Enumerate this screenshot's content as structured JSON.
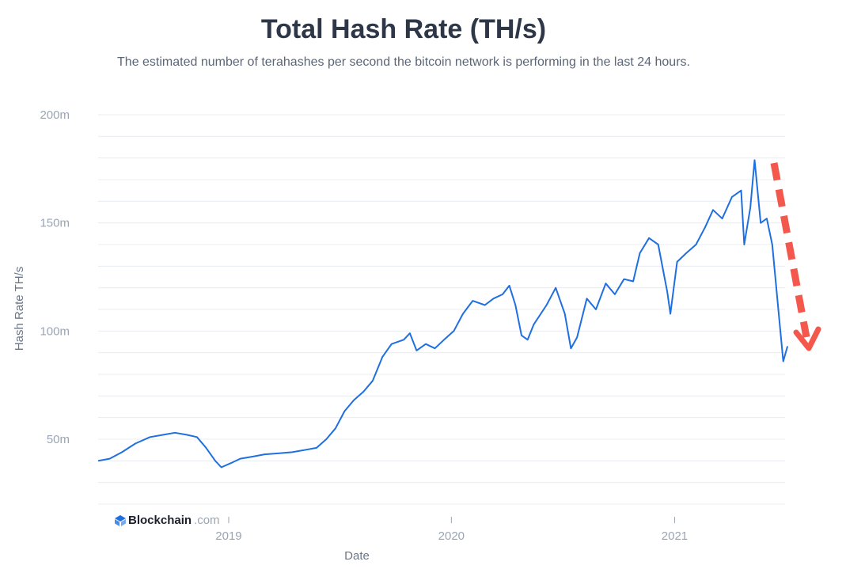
{
  "header": {
    "title": "Total Hash Rate (TH/s)",
    "subtitle": "The estimated number of terahashes per second the bitcoin network is performing in the last 24 hours."
  },
  "brand": {
    "name": "Blockchain",
    "suffix": ".com",
    "icon": "blockchain-logo-icon"
  },
  "colors": {
    "line": "#1f6fe0",
    "annotation_arrow": "#f4584c",
    "grid": "#e8ecf1"
  },
  "chart_data": {
    "type": "line",
    "title": "Total Hash Rate (TH/s)",
    "xlabel": "Date",
    "ylabel": "Hash Rate TH/s",
    "y_ticks": [
      {
        "value": 50000000,
        "label": "50m"
      },
      {
        "value": 100000000,
        "label": "100m"
      },
      {
        "value": 150000000,
        "label": "150m"
      },
      {
        "value": 200000000,
        "label": "200m"
      }
    ],
    "x_ticks": [
      {
        "value": "2019-01-01",
        "label": "2019"
      },
      {
        "value": "2020-01-01",
        "label": "2020"
      },
      {
        "value": "2021-01-01",
        "label": "2021"
      }
    ],
    "xlim": [
      "2018-06-01",
      "2021-07-01"
    ],
    "ylim": [
      20000000,
      200000000
    ],
    "grid": true,
    "legend": "none",
    "annotation": "red dashed downward arrow near the end of the series",
    "series": [
      {
        "points": [
          [
            "2018-06-01",
            40000000
          ],
          [
            "2018-06-20",
            41000000
          ],
          [
            "2018-07-10",
            44000000
          ],
          [
            "2018-08-01",
            48000000
          ],
          [
            "2018-08-25",
            51000000
          ],
          [
            "2018-09-15",
            52000000
          ],
          [
            "2018-10-05",
            53000000
          ],
          [
            "2018-10-25",
            52000000
          ],
          [
            "2018-11-10",
            51000000
          ],
          [
            "2018-11-25",
            46000000
          ],
          [
            "2018-12-10",
            40000000
          ],
          [
            "2018-12-20",
            37000000
          ],
          [
            "2019-01-05",
            39000000
          ],
          [
            "2019-01-20",
            41000000
          ],
          [
            "2019-02-10",
            42000000
          ],
          [
            "2019-03-01",
            43000000
          ],
          [
            "2019-03-25",
            43500000
          ],
          [
            "2019-04-15",
            44000000
          ],
          [
            "2019-05-05",
            45000000
          ],
          [
            "2019-05-25",
            46000000
          ],
          [
            "2019-06-10",
            50000000
          ],
          [
            "2019-06-25",
            55000000
          ],
          [
            "2019-07-10",
            63000000
          ],
          [
            "2019-07-25",
            68000000
          ],
          [
            "2019-08-10",
            72000000
          ],
          [
            "2019-08-25",
            77000000
          ],
          [
            "2019-09-10",
            88000000
          ],
          [
            "2019-09-25",
            94000000
          ],
          [
            "2019-10-15",
            96000000
          ],
          [
            "2019-10-25",
            99000000
          ],
          [
            "2019-11-05",
            91000000
          ],
          [
            "2019-11-20",
            94000000
          ],
          [
            "2019-12-05",
            92000000
          ],
          [
            "2019-12-20",
            96000000
          ],
          [
            "2020-01-05",
            100000000
          ],
          [
            "2020-01-20",
            108000000
          ],
          [
            "2020-02-05",
            114000000
          ],
          [
            "2020-02-25",
            112000000
          ],
          [
            "2020-03-10",
            115000000
          ],
          [
            "2020-03-25",
            117000000
          ],
          [
            "2020-04-05",
            121000000
          ],
          [
            "2020-04-15",
            112000000
          ],
          [
            "2020-04-25",
            98000000
          ],
          [
            "2020-05-05",
            96000000
          ],
          [
            "2020-05-15",
            103000000
          ],
          [
            "2020-06-05",
            112000000
          ],
          [
            "2020-06-20",
            120000000
          ],
          [
            "2020-07-05",
            108000000
          ],
          [
            "2020-07-15",
            92000000
          ],
          [
            "2020-07-25",
            97000000
          ],
          [
            "2020-08-10",
            115000000
          ],
          [
            "2020-08-25",
            110000000
          ],
          [
            "2020-09-10",
            122000000
          ],
          [
            "2020-09-25",
            117000000
          ],
          [
            "2020-10-10",
            124000000
          ],
          [
            "2020-10-25",
            123000000
          ],
          [
            "2020-11-05",
            136000000
          ],
          [
            "2020-11-20",
            143000000
          ],
          [
            "2020-12-05",
            140000000
          ],
          [
            "2020-12-20",
            118000000
          ],
          [
            "2020-12-25",
            108000000
          ],
          [
            "2021-01-05",
            132000000
          ],
          [
            "2021-01-20",
            136000000
          ],
          [
            "2021-02-05",
            140000000
          ],
          [
            "2021-02-20",
            148000000
          ],
          [
            "2021-03-05",
            156000000
          ],
          [
            "2021-03-20",
            152000000
          ],
          [
            "2021-04-05",
            162000000
          ],
          [
            "2021-04-20",
            165000000
          ],
          [
            "2021-04-25",
            140000000
          ],
          [
            "2021-05-05",
            157000000
          ],
          [
            "2021-05-12",
            179000000
          ],
          [
            "2021-05-22",
            150000000
          ],
          [
            "2021-06-01",
            152000000
          ],
          [
            "2021-06-10",
            140000000
          ],
          [
            "2021-06-20",
            110000000
          ],
          [
            "2021-06-28",
            86000000
          ],
          [
            "2021-07-05",
            93000000
          ]
        ]
      }
    ]
  }
}
